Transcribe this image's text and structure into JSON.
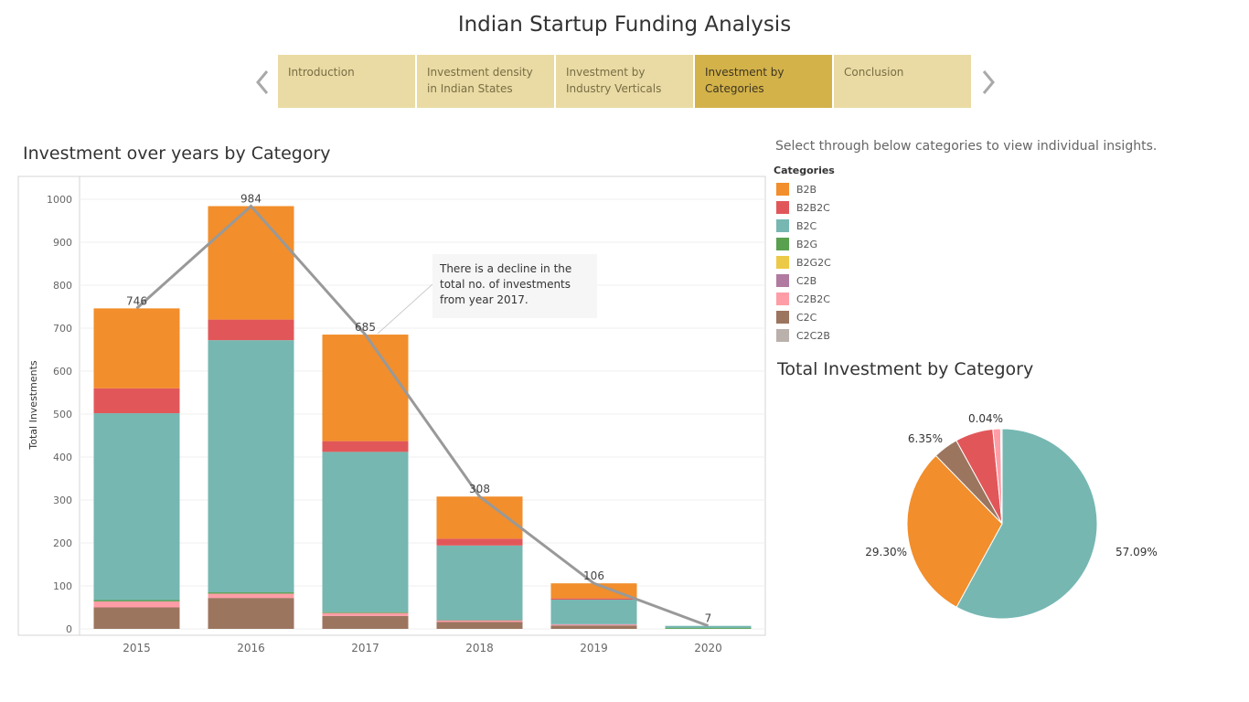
{
  "page_title": "Indian Startup Funding Analysis",
  "nav": {
    "tabs": [
      {
        "label": "Introduction"
      },
      {
        "label": "Investment density in Indian States"
      },
      {
        "label": "Investment by Industry Verticals"
      },
      {
        "label": "Investment by Categories"
      },
      {
        "label": "Conclusion"
      }
    ],
    "active_index": 3
  },
  "instructions": "Select through below categories to view individual insights.",
  "legend": {
    "title": "Categories",
    "items": [
      {
        "label": "B2B",
        "color": "#f28e2b"
      },
      {
        "label": "B2B2C",
        "color": "#e15759"
      },
      {
        "label": "B2C",
        "color": "#76b7b2"
      },
      {
        "label": "B2G",
        "color": "#59a14f"
      },
      {
        "label": "B2G2C",
        "color": "#edc948"
      },
      {
        "label": "C2B",
        "color": "#b07aa1"
      },
      {
        "label": "C2B2C",
        "color": "#ff9da7"
      },
      {
        "label": "C2C",
        "color": "#9c755f"
      },
      {
        "label": "C2C2B",
        "color": "#bab0ac"
      }
    ]
  },
  "chart_data": [
    {
      "type": "bar",
      "stacked": true,
      "title": "Investment over years by Category",
      "ylabel": "Total Investments",
      "xlabel": "",
      "categories": [
        "2015",
        "2016",
        "2017",
        "2018",
        "2019",
        "2020"
      ],
      "ylim": [
        0,
        1000
      ],
      "yticks": [
        0,
        100,
        200,
        300,
        400,
        500,
        600,
        700,
        800,
        900,
        1000
      ],
      "grid": true,
      "series": [
        {
          "name": "C2C",
          "color": "#9c755f",
          "values": [
            50,
            72,
            30,
            16,
            8,
            0
          ]
        },
        {
          "name": "C2C2B",
          "color": "#bab0ac",
          "values": [
            0,
            0,
            0,
            0,
            0,
            0
          ]
        },
        {
          "name": "C2B2C",
          "color": "#ff9da7",
          "values": [
            14,
            10,
            7,
            3,
            2,
            0
          ]
        },
        {
          "name": "C2B",
          "color": "#b07aa1",
          "values": [
            0,
            0,
            0,
            1,
            1,
            0
          ]
        },
        {
          "name": "B2G2C",
          "color": "#edc948",
          "values": [
            0,
            0,
            0,
            0,
            0,
            0
          ]
        },
        {
          "name": "B2G",
          "color": "#59a14f",
          "values": [
            3,
            3,
            2,
            1,
            0,
            2
          ]
        },
        {
          "name": "B2C",
          "color": "#76b7b2",
          "values": [
            435,
            587,
            373,
            173,
            57,
            5
          ]
        },
        {
          "name": "B2B2C",
          "color": "#e15759",
          "values": [
            58,
            48,
            25,
            16,
            3,
            0
          ]
        },
        {
          "name": "B2B",
          "color": "#f28e2b",
          "values": [
            186,
            264,
            248,
            98,
            35,
            0
          ]
        }
      ],
      "totals": [
        746,
        984,
        685,
        308,
        106,
        7
      ],
      "trend_line": {
        "color": "#999999",
        "values": [
          746,
          984,
          685,
          308,
          106,
          7
        ]
      },
      "annotation": "There is a decline in the total no. of investments from year 2017."
    },
    {
      "type": "pie",
      "title": "Total Investment by Category",
      "slices": [
        {
          "name": "B2C",
          "value": 57.09,
          "label": "57.09%",
          "color": "#76b7b2"
        },
        {
          "name": "B2B",
          "value": 29.3,
          "label": "29.30%",
          "color": "#f28e2b"
        },
        {
          "name": "C2C",
          "value": 4.2,
          "label": "",
          "color": "#9c755f"
        },
        {
          "name": "B2B2C",
          "value": 6.35,
          "label": "6.35%",
          "color": "#e15759"
        },
        {
          "name": "C2B2C",
          "value": 1.3,
          "label": "",
          "color": "#ff9da7"
        },
        {
          "name": "B2G",
          "value": 0.2,
          "label": "",
          "color": "#59a14f"
        },
        {
          "name": "C2B",
          "value": 0.04,
          "label": "0.04%",
          "color": "#b07aa1"
        }
      ]
    }
  ]
}
